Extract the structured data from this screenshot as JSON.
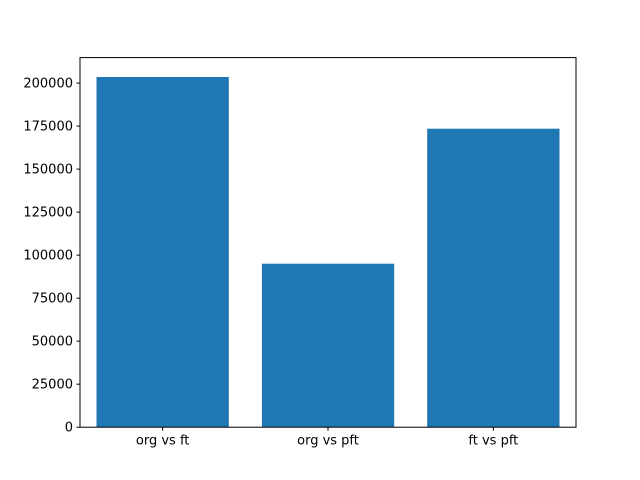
{
  "figure": {
    "background": "#ffffff",
    "spine_color": "#000000",
    "tick_color": "#000000",
    "text_color": "#000000"
  },
  "chart_data": {
    "type": "bar",
    "title": "",
    "xlabel": "",
    "ylabel": "",
    "categories": [
      "org vs ft",
      "org vs pft",
      "ft vs pft"
    ],
    "values": [
      203500,
      95000,
      173500
    ],
    "bar_color": "#1f77b4",
    "bar_width_fraction": 0.8,
    "ylim": [
      0,
      214800
    ],
    "yticks": [
      0,
      25000,
      50000,
      75000,
      100000,
      125000,
      150000,
      175000,
      200000
    ],
    "ytick_labels": [
      "0",
      "25000",
      "50000",
      "75000",
      "100000",
      "125000",
      "150000",
      "175000",
      "200000"
    ],
    "grid": false,
    "legend_position": "none"
  }
}
